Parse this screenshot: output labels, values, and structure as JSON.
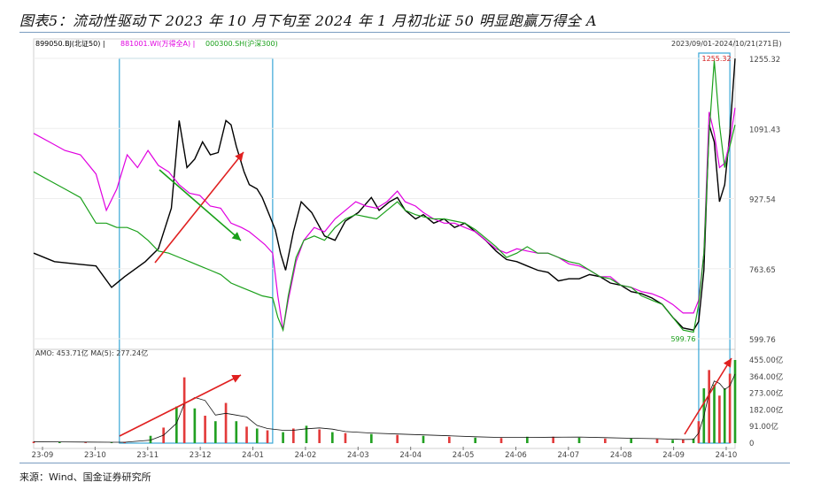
{
  "figure": {
    "title": "图表5：流动性驱动下 2023 年 10 月下旬至 2024 年 1 月初北证 50 明显跑赢万得全 A",
    "source": "来源：Wind、国金证券研究所"
  },
  "chart_data": [
    {
      "type": "line",
      "legend": [
        {
          "label": "899050.BJ(北证50)",
          "color": "#000000"
        },
        {
          "label": "881001.WI(万得全A)",
          "color": "#e000e0"
        },
        {
          "label": "000300.SH(沪深300)",
          "color": "#1aa01a"
        }
      ],
      "date_range": "2023/09/01-2024/10/21(271日)",
      "y_ticks": [
        "1255.32",
        "1091.43",
        "927.54",
        "763.65",
        "599.76"
      ],
      "ylim": [
        599.76,
        1255.32
      ],
      "x_ticks": [
        "23-09",
        "23-10",
        "23-11",
        "23-12",
        "24-01",
        "24-02",
        "24-03",
        "24-04",
        "24-05",
        "24-06",
        "24-07",
        "24-08",
        "24-09",
        "24-10"
      ],
      "annotations": {
        "max_label": "1255.32",
        "min_label": "599.76"
      },
      "series": [
        {
          "name": "899050.BJ(北证50)",
          "color": "#000000",
          "values": [
            [
              0,
              800
            ],
            [
              8,
              780
            ],
            [
              16,
              775
            ],
            [
              24,
              770
            ],
            [
              30,
              720
            ],
            [
              35,
              745
            ],
            [
              43,
              780
            ],
            [
              48,
              810
            ],
            [
              53,
              905
            ],
            [
              56,
              1110
            ],
            [
              59,
              1000
            ],
            [
              62,
              1020
            ],
            [
              65,
              1060
            ],
            [
              68,
              1030
            ],
            [
              71,
              1035
            ],
            [
              74,
              1110
            ],
            [
              76,
              1100
            ],
            [
              78,
              1050
            ],
            [
              81,
              990
            ],
            [
              83,
              960
            ],
            [
              86,
              950
            ],
            [
              88,
              930
            ],
            [
              90,
              900
            ],
            [
              93,
              855
            ],
            [
              95,
              800
            ],
            [
              97,
              760
            ],
            [
              100,
              850
            ],
            [
              103,
              920
            ],
            [
              107,
              895
            ],
            [
              112,
              840
            ],
            [
              116,
              830
            ],
            [
              120,
              875
            ],
            [
              125,
              895
            ],
            [
              130,
              930
            ],
            [
              133,
              900
            ],
            [
              137,
              920
            ],
            [
              140,
              930
            ],
            [
              143,
              900
            ],
            [
              147,
              880
            ],
            [
              150,
              890
            ],
            [
              154,
              870
            ],
            [
              158,
              880
            ],
            [
              162,
              860
            ],
            [
              166,
              870
            ],
            [
              170,
              850
            ],
            [
              174,
              830
            ],
            [
              178,
              805
            ],
            [
              182,
              785
            ],
            [
              186,
              780
            ],
            [
              190,
              770
            ],
            [
              194,
              760
            ],
            [
              198,
              755
            ],
            [
              202,
              735
            ],
            [
              206,
              740
            ],
            [
              210,
              740
            ],
            [
              214,
              750
            ],
            [
              218,
              745
            ],
            [
              222,
              730
            ],
            [
              226,
              725
            ],
            [
              230,
              710
            ],
            [
              234,
              705
            ],
            [
              238,
              695
            ],
            [
              242,
              680
            ],
            [
              246,
              650
            ],
            [
              250,
              625
            ],
            [
              254,
              620
            ],
            [
              256,
              640
            ],
            [
              258,
              760
            ],
            [
              260,
              1100
            ],
            [
              262,
              1060
            ],
            [
              264,
              920
            ],
            [
              266,
              960
            ],
            [
              268,
              1080
            ],
            [
              270,
              1255
            ]
          ]
        },
        {
          "name": "881001.WI(万得全A)",
          "color": "#e000e0",
          "values": [
            [
              0,
              1080
            ],
            [
              6,
              1060
            ],
            [
              12,
              1040
            ],
            [
              18,
              1030
            ],
            [
              24,
              985
            ],
            [
              28,
              900
            ],
            [
              32,
              950
            ],
            [
              36,
              1030
            ],
            [
              40,
              1000
            ],
            [
              44,
              1040
            ],
            [
              48,
              1005
            ],
            [
              52,
              990
            ],
            [
              56,
              960
            ],
            [
              60,
              940
            ],
            [
              64,
              935
            ],
            [
              68,
              910
            ],
            [
              72,
              905
            ],
            [
              76,
              870
            ],
            [
              80,
              860
            ],
            [
              83,
              850
            ],
            [
              86,
              835
            ],
            [
              89,
              820
            ],
            [
              92,
              800
            ],
            [
              94,
              700
            ],
            [
              96,
              620
            ],
            [
              98,
              690
            ],
            [
              101,
              780
            ],
            [
              104,
              830
            ],
            [
              108,
              860
            ],
            [
              112,
              850
            ],
            [
              116,
              880
            ],
            [
              120,
              900
            ],
            [
              124,
              920
            ],
            [
              128,
              910
            ],
            [
              132,
              905
            ],
            [
              136,
              920
            ],
            [
              140,
              945
            ],
            [
              143,
              920
            ],
            [
              147,
              910
            ],
            [
              150,
              895
            ],
            [
              154,
              880
            ],
            [
              158,
              870
            ],
            [
              162,
              870
            ],
            [
              166,
              860
            ],
            [
              170,
              850
            ],
            [
              174,
              830
            ],
            [
              178,
              810
            ],
            [
              182,
              800
            ],
            [
              186,
              810
            ],
            [
              190,
              805
            ],
            [
              194,
              800
            ],
            [
              198,
              800
            ],
            [
              202,
              790
            ],
            [
              206,
              775
            ],
            [
              210,
              770
            ],
            [
              214,
              760
            ],
            [
              218,
              745
            ],
            [
              222,
              745
            ],
            [
              226,
              725
            ],
            [
              230,
              720
            ],
            [
              234,
              710
            ],
            [
              238,
              705
            ],
            [
              242,
              695
            ],
            [
              246,
              680
            ],
            [
              250,
              660
            ],
            [
              254,
              660
            ],
            [
              256,
              690
            ],
            [
              258,
              800
            ],
            [
              260,
              1130
            ],
            [
              262,
              1080
            ],
            [
              264,
              1000
            ],
            [
              266,
              1010
            ],
            [
              268,
              1060
            ],
            [
              270,
              1140
            ]
          ]
        },
        {
          "name": "000300.SH(沪深300)",
          "color": "#1aa01a",
          "values": [
            [
              0,
              990
            ],
            [
              6,
              970
            ],
            [
              12,
              950
            ],
            [
              18,
              930
            ],
            [
              24,
              870
            ],
            [
              28,
              870
            ],
            [
              32,
              860
            ],
            [
              36,
              860
            ],
            [
              40,
              850
            ],
            [
              44,
              830
            ],
            [
              48,
              805
            ],
            [
              52,
              800
            ],
            [
              56,
              790
            ],
            [
              60,
              780
            ],
            [
              64,
              770
            ],
            [
              68,
              760
            ],
            [
              72,
              750
            ],
            [
              76,
              730
            ],
            [
              80,
              720
            ],
            [
              84,
              710
            ],
            [
              88,
              700
            ],
            [
              92,
              695
            ],
            [
              94,
              650
            ],
            [
              96,
              620
            ],
            [
              98,
              700
            ],
            [
              101,
              790
            ],
            [
              104,
              830
            ],
            [
              108,
              840
            ],
            [
              112,
              830
            ],
            [
              116,
              860
            ],
            [
              120,
              880
            ],
            [
              124,
              890
            ],
            [
              128,
              885
            ],
            [
              132,
              880
            ],
            [
              136,
              900
            ],
            [
              140,
              920
            ],
            [
              143,
              900
            ],
            [
              147,
              890
            ],
            [
              150,
              885
            ],
            [
              154,
              880
            ],
            [
              158,
              880
            ],
            [
              162,
              875
            ],
            [
              166,
              870
            ],
            [
              170,
              855
            ],
            [
              174,
              835
            ],
            [
              178,
              815
            ],
            [
              182,
              790
            ],
            [
              186,
              800
            ],
            [
              190,
              815
            ],
            [
              194,
              800
            ],
            [
              198,
              800
            ],
            [
              202,
              790
            ],
            [
              206,
              780
            ],
            [
              210,
              775
            ],
            [
              214,
              760
            ],
            [
              218,
              745
            ],
            [
              222,
              740
            ],
            [
              226,
              725
            ],
            [
              230,
              720
            ],
            [
              234,
              700
            ],
            [
              238,
              690
            ],
            [
              242,
              680
            ],
            [
              246,
              650
            ],
            [
              250,
              620
            ],
            [
              254,
              615
            ],
            [
              256,
              680
            ],
            [
              258,
              800
            ],
            [
              260,
              1080
            ],
            [
              262,
              1250
            ],
            [
              264,
              1100
            ],
            [
              266,
              1000
            ],
            [
              268,
              1050
            ],
            [
              270,
              1100
            ]
          ]
        }
      ]
    },
    {
      "type": "bar",
      "title": "AMO: 453.71亿 MA(5): 277.24亿",
      "y_ticks": [
        "455.00亿",
        "364.00亿",
        "273.00亿",
        "182.00亿",
        "91.00亿",
        "0"
      ],
      "ylim": [
        0,
        455
      ],
      "ma_label": "MA(5)",
      "values": [
        [
          0,
          8
        ],
        [
          10,
          6
        ],
        [
          20,
          4
        ],
        [
          30,
          4
        ],
        [
          35,
          6
        ],
        [
          45,
          40
        ],
        [
          50,
          85
        ],
        [
          55,
          200
        ],
        [
          58,
          360
        ],
        [
          62,
          190
        ],
        [
          66,
          150
        ],
        [
          70,
          120
        ],
        [
          74,
          220
        ],
        [
          78,
          120
        ],
        [
          82,
          90
        ],
        [
          86,
          80
        ],
        [
          90,
          70
        ],
        [
          96,
          60
        ],
        [
          100,
          80
        ],
        [
          105,
          95
        ],
        [
          110,
          75
        ],
        [
          115,
          60
        ],
        [
          120,
          55
        ],
        [
          130,
          50
        ],
        [
          140,
          45
        ],
        [
          150,
          40
        ],
        [
          160,
          35
        ],
        [
          170,
          30
        ],
        [
          180,
          28
        ],
        [
          190,
          35
        ],
        [
          200,
          35
        ],
        [
          210,
          30
        ],
        [
          220,
          25
        ],
        [
          230,
          25
        ],
        [
          240,
          22
        ],
        [
          246,
          18
        ],
        [
          250,
          20
        ],
        [
          254,
          25
        ],
        [
          256,
          120
        ],
        [
          258,
          300
        ],
        [
          260,
          400
        ],
        [
          262,
          320
        ],
        [
          264,
          260
        ],
        [
          266,
          300
        ],
        [
          268,
          380
        ],
        [
          270,
          455
        ]
      ]
    }
  ]
}
